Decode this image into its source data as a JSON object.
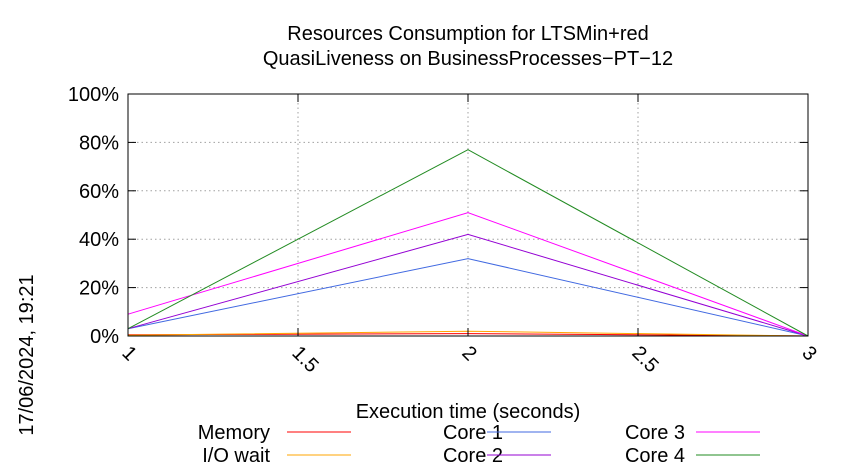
{
  "chart_data": {
    "type": "line",
    "title": "Resources Consumption for LTSMin+red",
    "subtitle": "QuasiLiveness on BusinessProcesses−PT−12",
    "xlabel": "Execution time (seconds)",
    "ylabel": "",
    "xlim": [
      1,
      3
    ],
    "ylim": [
      0,
      100
    ],
    "x_ticks": [
      "1",
      "1.5",
      "2",
      "2.5",
      "3"
    ],
    "y_ticks": [
      "0%",
      "20%",
      "40%",
      "60%",
      "80%",
      "100%"
    ],
    "grid": true,
    "legend_position": "bottom",
    "timestamp": "17/06/2024, 19:21",
    "x": [
      1,
      2,
      3
    ],
    "series": [
      {
        "name": "Memory",
        "color": "#ff0000",
        "values": [
          0.5,
          1.0,
          0
        ]
      },
      {
        "name": "I/O wait",
        "color": "#ffa500",
        "values": [
          0.3,
          2.0,
          0
        ]
      },
      {
        "name": "Core 1",
        "color": "#4169e1",
        "values": [
          3,
          32,
          0
        ]
      },
      {
        "name": "Core 2",
        "color": "#9400d3",
        "values": [
          3,
          42,
          0
        ]
      },
      {
        "name": "Core 3",
        "color": "#ff00ff",
        "values": [
          9,
          51,
          0
        ]
      },
      {
        "name": "Core 4",
        "color": "#228b22",
        "values": [
          3,
          77,
          0
        ]
      }
    ]
  }
}
